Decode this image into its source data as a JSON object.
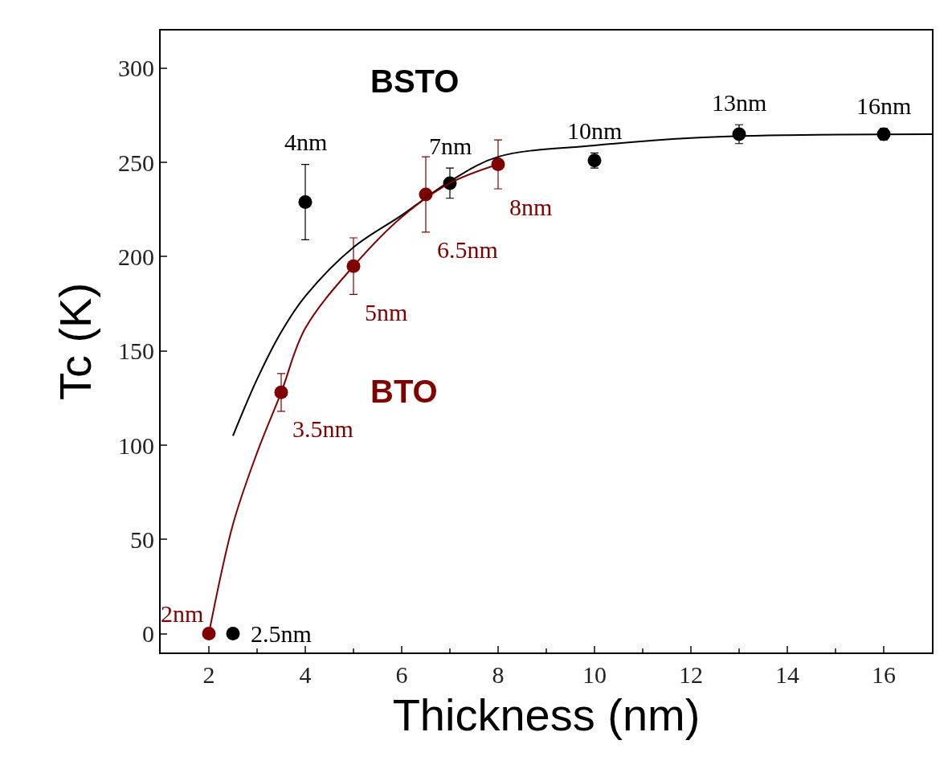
{
  "chart_data": {
    "type": "scatter",
    "xlabel": "Thickness (nm)",
    "ylabel": "Tc (K)",
    "xlim": [
      1,
      17
    ],
    "xticks": [
      2,
      4,
      6,
      8,
      10,
      12,
      14,
      16
    ],
    "ylim": [
      -10,
      320
    ],
    "yticks": [
      0,
      50,
      100,
      150,
      200,
      250,
      300
    ],
    "legend": false,
    "marker": "circle",
    "series": [
      {
        "name": "BSTO",
        "color": "#000000",
        "x": [
          2.5,
          4,
          7,
          10,
          13,
          16
        ],
        "values": [
          0,
          229,
          239,
          251,
          265,
          265
        ],
        "errors": [
          null,
          20,
          8,
          4,
          5,
          3
        ]
      },
      {
        "name": "BTO",
        "color": "#800000",
        "x": [
          2,
          3.5,
          5,
          6.5,
          8
        ],
        "values": [
          0,
          128,
          195,
          233,
          249
        ],
        "errors": [
          null,
          10,
          15,
          20,
          13
        ]
      },
      {
        "type": "line",
        "marker": "none",
        "color": "#000000",
        "x": [
          2.5,
          3,
          3.5,
          4,
          5,
          6,
          7,
          8,
          10,
          12,
          14,
          17
        ],
        "values": [
          105,
          135,
          160,
          179,
          205,
          222,
          240,
          253,
          259,
          263,
          264.5,
          265
        ]
      },
      {
        "type": "line",
        "marker": "none",
        "color": "#800000",
        "x": [
          2,
          2.5,
          3,
          3.5,
          4,
          5,
          6,
          7,
          8
        ],
        "values": [
          0,
          58,
          96,
          128,
          162,
          195,
          221,
          239,
          249
        ]
      }
    ],
    "annotations": [
      {
        "text": "2.5nm",
        "x": 2.5,
        "y": 0
      },
      {
        "text": "4nm",
        "x": 4,
        "y": 229
      },
      {
        "text": "7nm",
        "x": 7,
        "y": 239
      },
      {
        "text": "10nm",
        "x": 10,
        "y": 251
      },
      {
        "text": "13nm",
        "x": 13,
        "y": 265
      },
      {
        "text": "16nm",
        "x": 16,
        "y": 265
      },
      {
        "text": "2nm",
        "x": 2,
        "y": 0
      },
      {
        "text": "3.5nm",
        "x": 3.5,
        "y": 128
      },
      {
        "text": "5nm",
        "x": 5,
        "y": 195
      },
      {
        "text": "6.5nm",
        "x": 6.5,
        "y": 233
      },
      {
        "text": "8nm",
        "x": 8,
        "y": 249
      }
    ]
  }
}
